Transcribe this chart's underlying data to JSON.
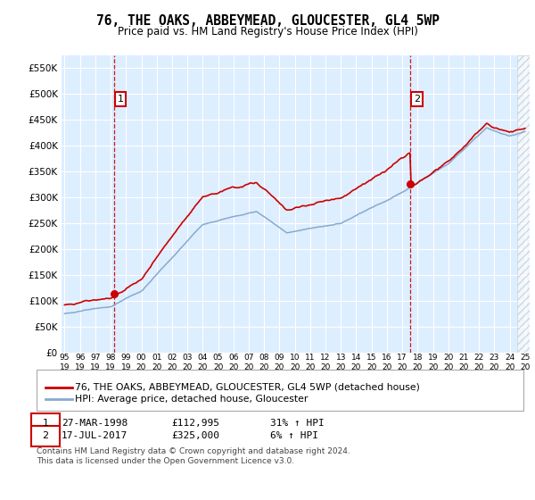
{
  "title": "76, THE OAKS, ABBEYMEAD, GLOUCESTER, GL4 5WP",
  "subtitle": "Price paid vs. HM Land Registry's House Price Index (HPI)",
  "ylim": [
    0,
    575000
  ],
  "yticks": [
    0,
    50000,
    100000,
    150000,
    200000,
    250000,
    300000,
    350000,
    400000,
    450000,
    500000,
    550000
  ],
  "xlim_start": 1994.8,
  "xlim_end": 2025.3,
  "xtick_years": [
    1995,
    1996,
    1997,
    1998,
    1999,
    2000,
    2001,
    2002,
    2003,
    2004,
    2005,
    2006,
    2007,
    2008,
    2009,
    2010,
    2011,
    2012,
    2013,
    2014,
    2015,
    2016,
    2017,
    2018,
    2019,
    2020,
    2021,
    2022,
    2023,
    2024,
    2025
  ],
  "sale1_x": 1998.23,
  "sale1_y": 112995,
  "sale2_x": 2017.54,
  "sale2_y": 325000,
  "legend_entries": [
    "76, THE OAKS, ABBEYMEAD, GLOUCESTER, GL4 5WP (detached house)",
    "HPI: Average price, detached house, Gloucester"
  ],
  "table_data": [
    [
      "1",
      "27-MAR-1998",
      "£112,995",
      "31% ↑ HPI"
    ],
    [
      "2",
      "17-JUL-2017",
      "£325,000",
      "6% ↑ HPI"
    ]
  ],
  "footer": "Contains HM Land Registry data © Crown copyright and database right 2024.\nThis data is licensed under the Open Government Licence v3.0.",
  "red_color": "#cc0000",
  "blue_color": "#88aacc",
  "bg_color": "#ddeeff",
  "grid_color": "#ffffff",
  "annotation_border_color": "#cc0000"
}
